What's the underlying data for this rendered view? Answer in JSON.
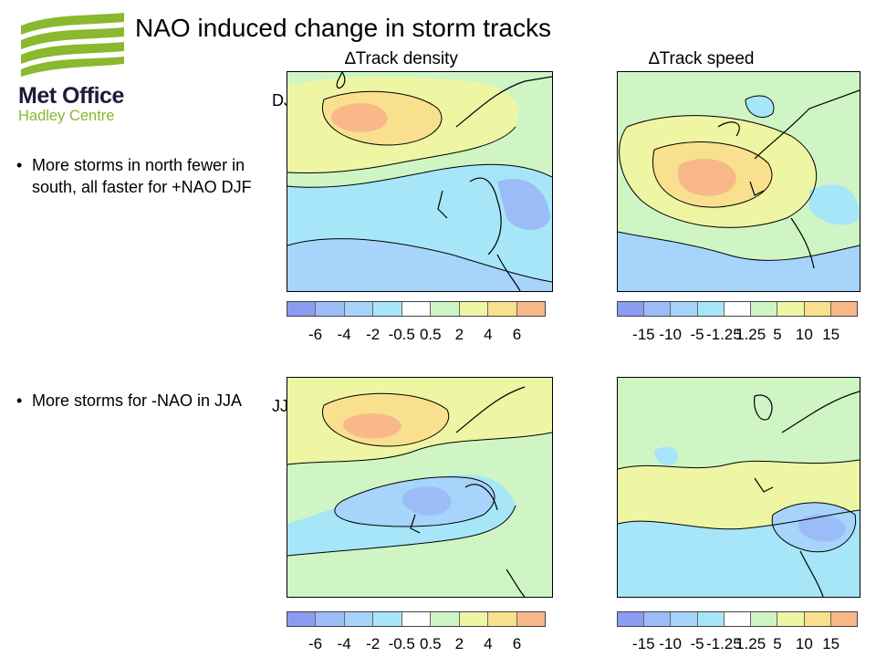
{
  "header": {
    "title": "NAO induced change in storm tracks",
    "col_density": "∆Track density",
    "col_speed": "∆Track speed"
  },
  "logo": {
    "line1": "Met Office",
    "line2": "Hadley Centre",
    "color_brand": "#8ab82e",
    "color_text": "#1b1b3b"
  },
  "seasons": {
    "djf": "DJF",
    "jja": "JJA"
  },
  "bullets": [
    {
      "symbol": "•",
      "text": "More storms in north fewer in south, all faster for +NAO DJF"
    },
    {
      "symbol": "•",
      "text": "More storms for -NAO in JJA"
    }
  ],
  "colorbars": {
    "colors": [
      "#8c9cf0",
      "#9cbcf8",
      "#a6d4fb",
      "#a6e6f8",
      "#ffffff",
      "#cff5c5",
      "#eef5a3",
      "#f8e08e",
      "#f8b88a"
    ],
    "density_ticks": [
      "-6",
      "-4",
      "-2",
      "-0.5",
      "0.5",
      "2",
      "4",
      "6"
    ],
    "speed_ticks": [
      "-15",
      "-10",
      "-5",
      "-1.25",
      "1.25",
      "5",
      "10",
      "15"
    ]
  }
}
